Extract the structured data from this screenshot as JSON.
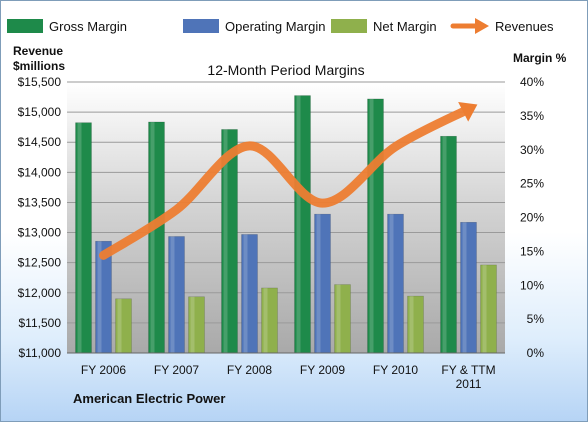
{
  "chart_data": {
    "type": "bar",
    "title": "12-Month Period Margins",
    "ylabel_left": [
      "Revenue",
      "$millions"
    ],
    "ylabel_right": "Margin %",
    "footer": "American Electric Power",
    "categories": [
      "FY 2006",
      "FY 2007",
      "FY 2008",
      "FY 2009",
      "FY 2010",
      "FY & TTM 2011"
    ],
    "left_axis": {
      "min": 11000,
      "max": 15500,
      "step": 500,
      "tick_labels": [
        "$11,000",
        "$11,500",
        "$12,000",
        "$12,500",
        "$13,000",
        "$13,500",
        "$14,000",
        "$14,500",
        "$15,000",
        "$15,500"
      ]
    },
    "right_axis": {
      "min": 0,
      "max": 40,
      "step": 5,
      "tick_labels": [
        "0%",
        "5%",
        "10%",
        "15%",
        "20%",
        "25%",
        "30%",
        "35%",
        "40%"
      ]
    },
    "series": [
      {
        "name": "Gross Margin",
        "axis": "right",
        "color": "#1e8a4a",
        "values": [
          34.0,
          34.1,
          33.0,
          38.0,
          37.5,
          32.0
        ]
      },
      {
        "name": "Operating Margin",
        "axis": "right",
        "color": "#4f74b8",
        "values": [
          16.5,
          17.2,
          17.5,
          20.5,
          20.5,
          19.3
        ]
      },
      {
        "name": "Net Margin",
        "axis": "right",
        "color": "#8fb04c",
        "values": [
          8.0,
          8.3,
          9.6,
          10.1,
          8.4,
          13.0
        ]
      },
      {
        "name": "Revenues",
        "axis": "left",
        "color": "#ed7d31",
        "type": "line",
        "values": [
          12622,
          13380,
          14440,
          13489,
          14427,
          15050
        ]
      }
    ],
    "grid": true,
    "legend_position": "top"
  }
}
